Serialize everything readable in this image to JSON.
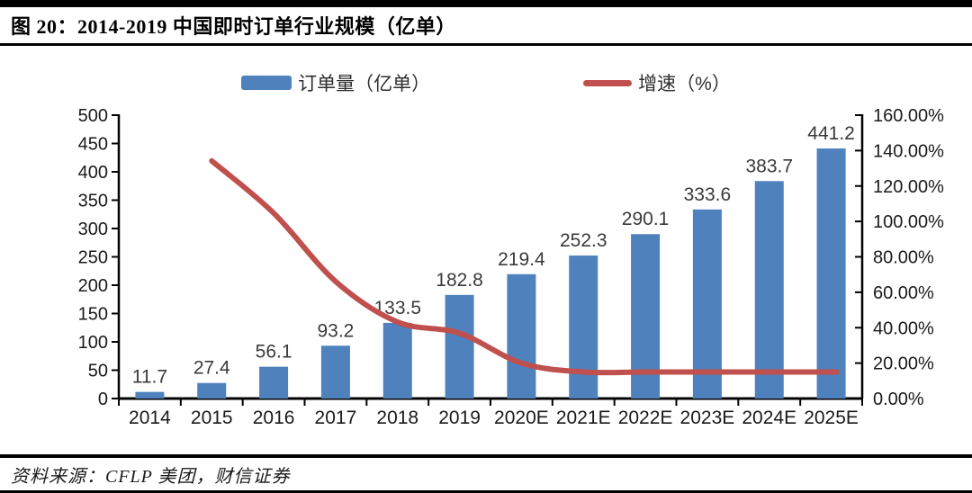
{
  "figure": {
    "title": "图 20：2014-2019 中国即时订单行业规模（亿单）",
    "source": "资料来源：CFLP 美团，财信证券"
  },
  "legend": [
    {
      "label": "订单量（亿单）",
      "type": "bar",
      "color": "#4f81bd"
    },
    {
      "label": "增速（%）",
      "type": "line",
      "color": "#c0504d"
    }
  ],
  "chart_data": {
    "type": "combo",
    "title": "图 20：2014-2019 中国即时订单行业规模（亿单）",
    "categories": [
      "2014",
      "2015",
      "2016",
      "2017",
      "2018",
      "2019",
      "2020E",
      "2021E",
      "2022E",
      "2023E",
      "2024E",
      "2025E"
    ],
    "series": [
      {
        "name": "订单量（亿单）",
        "type": "bar",
        "axis": "left",
        "color": "#4f81bd",
        "values": [
          11.7,
          27.4,
          56.1,
          93.2,
          133.5,
          182.8,
          219.4,
          252.3,
          290.1,
          333.6,
          383.7,
          441.2
        ],
        "labels": [
          "11.7",
          "27.4",
          "56.1",
          "93.2",
          "133.5",
          "182.8",
          "219.4",
          "252.3",
          "290.1",
          "333.6",
          "383.7",
          "441.2"
        ]
      },
      {
        "name": "增速（%）",
        "type": "line",
        "axis": "right",
        "color": "#c0504d",
        "values": [
          null,
          134.2,
          104.7,
          66.1,
          43.2,
          36.9,
          20.0,
          15.0,
          15.0,
          15.0,
          15.0,
          15.0
        ]
      }
    ],
    "left_axis": {
      "min": 0,
      "max": 500,
      "step": 50,
      "ticks": [
        "0",
        "50",
        "100",
        "150",
        "200",
        "250",
        "300",
        "350",
        "400",
        "450",
        "500"
      ]
    },
    "right_axis": {
      "min": 0,
      "max": 160,
      "step": 20,
      "ticks": [
        "0.00%",
        "20.00%",
        "40.00%",
        "60.00%",
        "80.00%",
        "100.00%",
        "120.00%",
        "140.00%",
        "160.00%"
      ]
    },
    "grid": false,
    "legend_position": "top",
    "axis_color": "#000000",
    "label_color": "#3a3a3a"
  }
}
